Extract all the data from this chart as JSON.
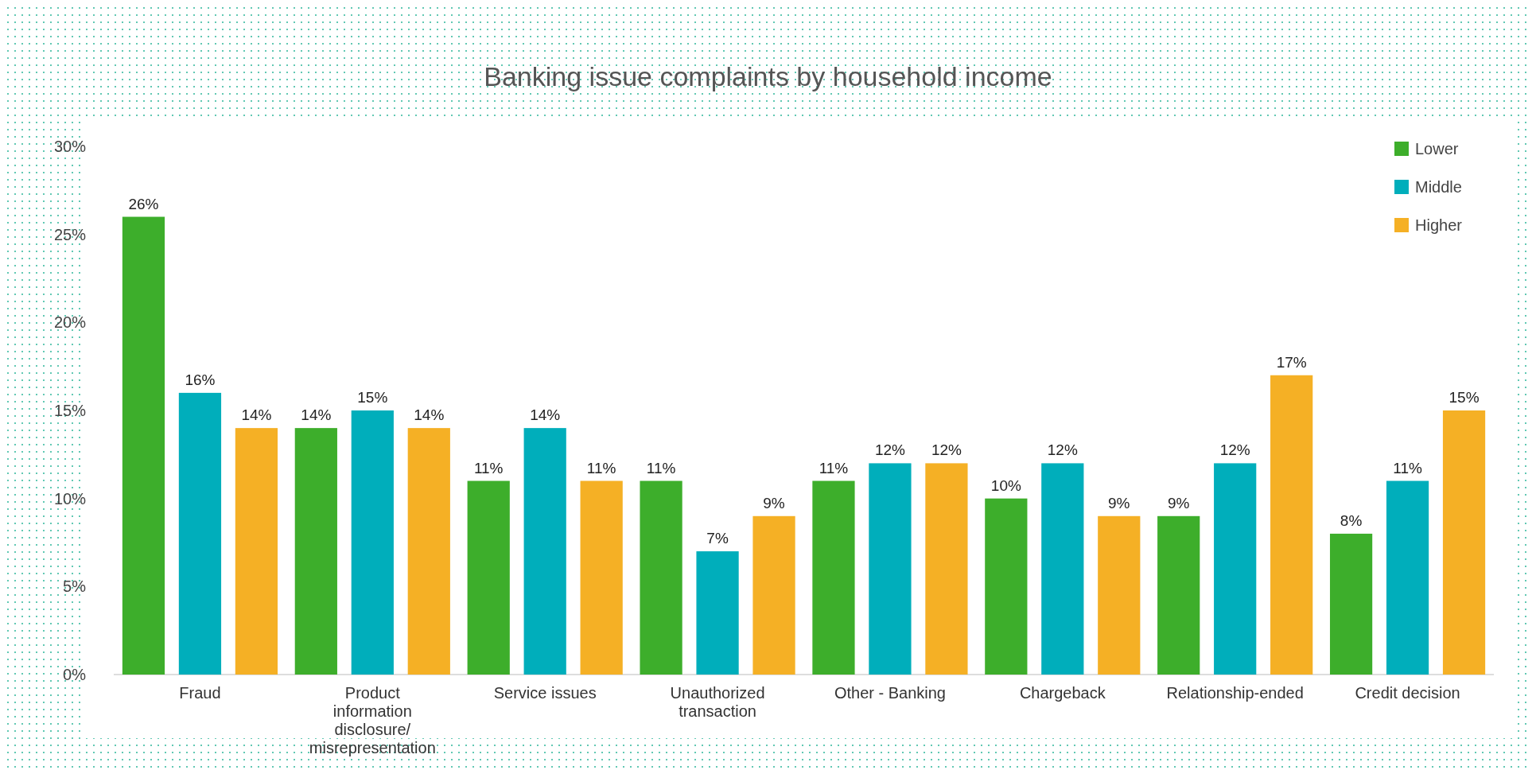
{
  "chart_data": {
    "type": "bar",
    "title": "Banking issue complaints by household income",
    "categories": [
      "Fraud",
      "Product\ninformation\ndisclosure/\nmisrepresentation",
      "Service issues",
      "Unauthorized\ntransaction",
      "Other - Banking",
      "Chargeback",
      "Relationship-ended",
      "Credit decision"
    ],
    "series": [
      {
        "name": "Lower",
        "color": "#3dae2b",
        "values": [
          26,
          14,
          11,
          11,
          11,
          10,
          9,
          8
        ],
        "value_labels": [
          "26%",
          "14%",
          "11%",
          "11%",
          "11%",
          "10%",
          "9%",
          "8%"
        ]
      },
      {
        "name": "Middle",
        "color": "#00aebb",
        "values": [
          16,
          15,
          14,
          7,
          12,
          12,
          12,
          11
        ],
        "value_labels": [
          "16%",
          "15%",
          "14%",
          "7%",
          "12%",
          "12%",
          "12%",
          "11%"
        ]
      },
      {
        "name": "Higher",
        "color": "#f5b025",
        "values": [
          14,
          14,
          11,
          9,
          12,
          9,
          17,
          15
        ],
        "value_labels": [
          "14%",
          "14%",
          "11%",
          "9%",
          "12%",
          "9%",
          "17%",
          "15%"
        ]
      }
    ],
    "ylim": [
      0,
      30
    ],
    "yticks": [
      {
        "value": 0,
        "label": "0%"
      },
      {
        "value": 5,
        "label": "5%"
      },
      {
        "value": 10,
        "label": "10%"
      },
      {
        "value": 15,
        "label": "15%"
      },
      {
        "value": 20,
        "label": "20%"
      },
      {
        "value": 25,
        "label": "25%"
      },
      {
        "value": 30,
        "label": "30%"
      }
    ],
    "grid": false,
    "legend": "top right"
  }
}
